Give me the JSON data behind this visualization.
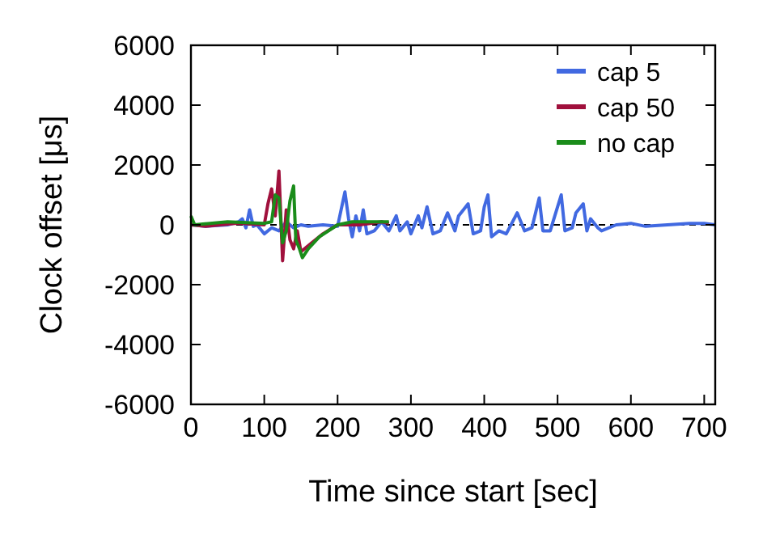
{
  "chart_data": {
    "type": "line",
    "xlabel": "Time since start [sec]",
    "ylabel": "Clock offset [μs]",
    "xlim": [
      0,
      715
    ],
    "ylim": [
      -6000,
      6000
    ],
    "xticks": [
      0,
      100,
      200,
      300,
      400,
      500,
      600,
      700
    ],
    "yticks": [
      -6000,
      -4000,
      -2000,
      0,
      2000,
      4000,
      6000
    ],
    "grid": false,
    "legend": "top right",
    "line_style": "solid",
    "ref_lines": [
      {
        "axis": "y",
        "value": 0,
        "color": "#000000",
        "line_style": "dashed"
      }
    ],
    "series": [
      {
        "name": "cap 5",
        "color": "#4169e1",
        "x": [
          0,
          20,
          50,
          65,
          70,
          75,
          80,
          85,
          90,
          100,
          110,
          120,
          130,
          140,
          150,
          160,
          180,
          200,
          210,
          215,
          220,
          225,
          230,
          235,
          240,
          250,
          260,
          270,
          280,
          285,
          295,
          300,
          310,
          315,
          322,
          330,
          340,
          350,
          360,
          365,
          378,
          385,
          395,
          400,
          405,
          410,
          420,
          430,
          445,
          455,
          465,
          470,
          475,
          480,
          490,
          505,
          510,
          520,
          525,
          535,
          540,
          545,
          555,
          560,
          580,
          600,
          620,
          650,
          680,
          700,
          715
        ],
        "values": [
          0,
          -50,
          0,
          100,
          200,
          -100,
          500,
          -50,
          0,
          -300,
          -100,
          -200,
          100,
          -100,
          0,
          -50,
          0,
          -50,
          1100,
          200,
          -400,
          300,
          -200,
          500,
          -300,
          -200,
          100,
          -200,
          300,
          -200,
          100,
          -300,
          300,
          -100,
          600,
          -300,
          -200,
          400,
          -200,
          300,
          700,
          -300,
          -200,
          600,
          1000,
          -400,
          -200,
          -300,
          400,
          -200,
          -100,
          400,
          900,
          -200,
          -200,
          1000,
          -200,
          -100,
          400,
          700,
          -200,
          200,
          -100,
          -200,
          0,
          50,
          -50,
          0,
          50,
          50,
          0
        ]
      },
      {
        "name": "cap 50",
        "color": "#a0103c",
        "x": [
          0,
          20,
          60,
          70,
          100,
          105,
          110,
          115,
          120,
          125,
          130,
          135,
          140,
          145,
          150,
          160,
          180,
          200,
          230,
          260,
          270
        ],
        "values": [
          0,
          -50,
          50,
          50,
          0,
          700,
          1200,
          300,
          1800,
          -1200,
          500,
          -500,
          -800,
          -200,
          -900,
          -700,
          -300,
          0,
          0,
          100,
          50
        ]
      },
      {
        "name": "no cap",
        "color": "#1a8c1a",
        "x": [
          0,
          5,
          50,
          100,
          110,
          115,
          120,
          125,
          130,
          135,
          140,
          143,
          148,
          152,
          160,
          175,
          200,
          220,
          240,
          270
        ],
        "values": [
          300,
          0,
          100,
          50,
          100,
          1000,
          900,
          -600,
          -200,
          800,
          1300,
          -500,
          -800,
          -1100,
          -800,
          -400,
          0,
          100,
          100,
          100
        ]
      }
    ]
  }
}
